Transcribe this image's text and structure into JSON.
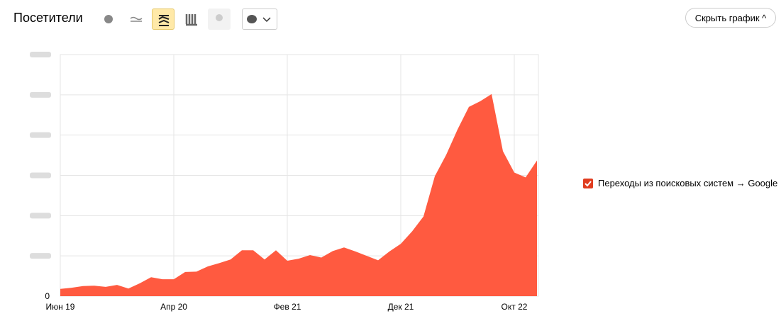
{
  "header": {
    "title": "Посетители",
    "hide_button": "Скрыть график"
  },
  "chart_data": {
    "type": "area",
    "categories": [
      "Июн 19",
      null,
      null,
      null,
      null,
      null,
      null,
      null,
      null,
      null,
      "Апр 20",
      null,
      null,
      null,
      null,
      null,
      null,
      null,
      null,
      null,
      "Фев 21",
      null,
      null,
      null,
      null,
      null,
      null,
      null,
      null,
      null,
      "Дек 21",
      null,
      null,
      null,
      null,
      null,
      null,
      null,
      null,
      null,
      "Окт 22",
      null,
      null
    ],
    "series": [
      {
        "name": "Переходы из поисковых систем → Google",
        "color": "#ff5a40",
        "values": [
          0.18,
          0.21,
          0.25,
          0.26,
          0.23,
          0.28,
          0.19,
          0.32,
          0.47,
          0.42,
          0.42,
          0.6,
          0.61,
          0.74,
          0.82,
          0.91,
          1.14,
          1.14,
          0.91,
          1.14,
          0.88,
          0.93,
          1.02,
          0.96,
          1.12,
          1.21,
          1.11,
          1.0,
          0.89,
          1.11,
          1.3,
          1.61,
          1.98,
          2.98,
          3.51,
          4.14,
          4.7,
          4.84,
          5.02,
          3.6,
          3.07,
          2.95,
          3.37
        ]
      }
    ],
    "ylim": [
      0,
      6
    ],
    "yticks": [
      0
    ],
    "grid": true
  }
}
